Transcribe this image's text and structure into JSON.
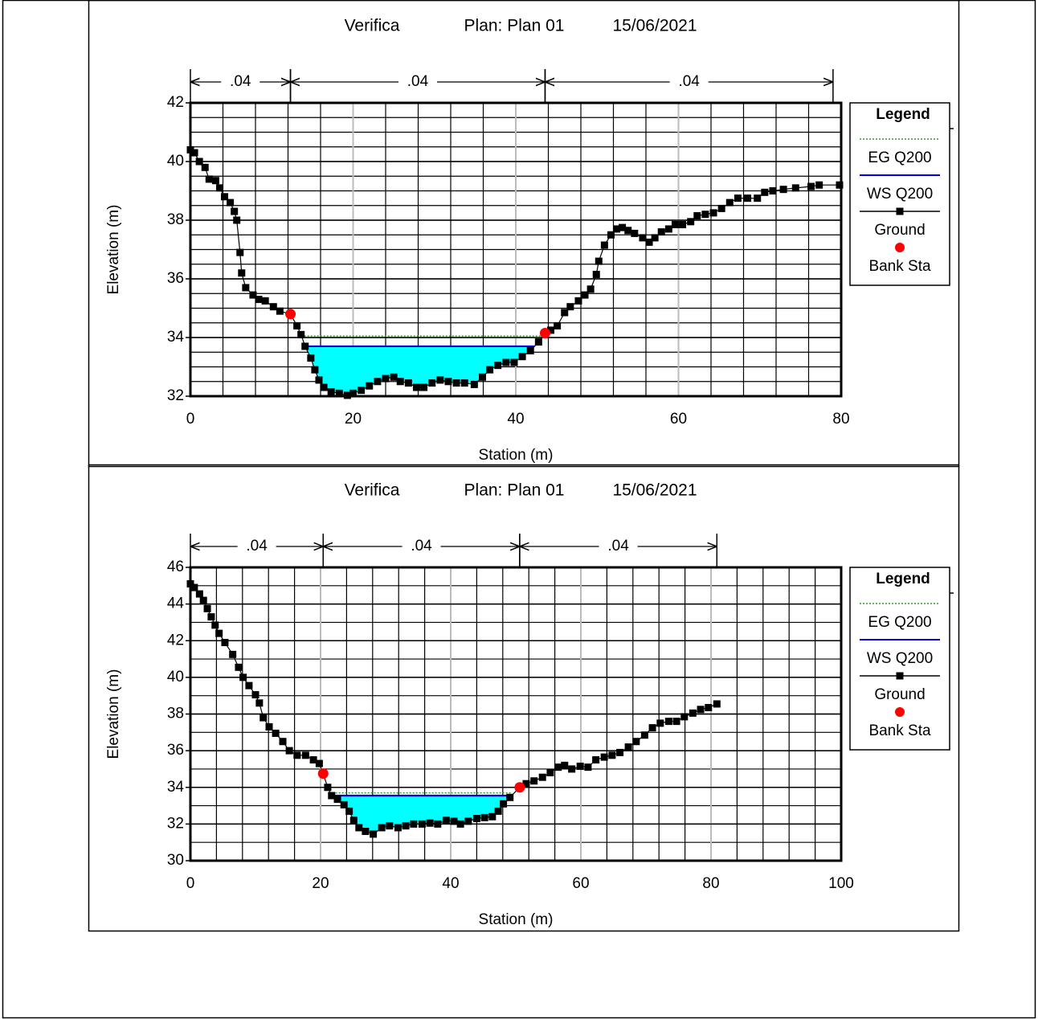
{
  "chart_data": [
    {
      "type": "line",
      "title": "Verifica",
      "plan": "Plan: Plan 01",
      "date": "15/06/2021",
      "x_label": "Station (m)",
      "y_label": "Elevation (m)",
      "legend_title": "Legend",
      "xlim": [
        0,
        80
      ],
      "ylim": [
        32,
        42
      ],
      "xticks": [
        0,
        20,
        40,
        60,
        80
      ],
      "yticks": [
        32,
        34,
        36,
        38,
        40,
        42
      ],
      "grid": true,
      "minor_grid": {
        "x": 4,
        "y": 0.5
      },
      "legend": "right",
      "fill_color": "#00ffff",
      "manning_n": [
        {
          "from": 0,
          "to": 12.3,
          "n": {
            "value": 0.04,
            "label": ".04"
          }
        },
        {
          "from": 12.3,
          "to": 43.6,
          "n": {
            "value": 0.04,
            "label": ".04"
          }
        },
        {
          "from": 43.6,
          "to": 79,
          "n": {
            "value": 0.04,
            "label": ".04"
          }
        }
      ],
      "series": [
        {
          "name": "EG Q200",
          "color": "#2e9e2e",
          "style": "dotted",
          "x": [
            13.6,
            43.2
          ],
          "values": [
            34.05,
            34.05
          ]
        },
        {
          "name": "WS Q200",
          "color": "#0000dd",
          "style": "solid",
          "x": [
            14.1,
            42.3
          ],
          "values": [
            33.7,
            33.7
          ]
        },
        {
          "name": "Ground",
          "color": "#000000",
          "marker": "square",
          "x": [
            0,
            0.5,
            1.1,
            1.8,
            2.3,
            3.1,
            3.6,
            4.2,
            4.9,
            5.4,
            5.7,
            6.1,
            6.3,
            6.8,
            7.7,
            8.4,
            9.2,
            10.2,
            11.0,
            12.3,
            13.1,
            13.6,
            14.1,
            14.8,
            15.3,
            15.8,
            16.4,
            17.3,
            18.3,
            19.3,
            20.0,
            21.0,
            22.0,
            23.0,
            24.0,
            25.0,
            25.8,
            26.8,
            27.8,
            28.7,
            29.7,
            30.7,
            31.7,
            32.7,
            33.7,
            34.9,
            35.9,
            36.8,
            37.8,
            38.8,
            39.8,
            40.8,
            41.8,
            42.8,
            43.6,
            44.3,
            45.1,
            46.0,
            46.7,
            47.7,
            48.5,
            49.2,
            49.9,
            50.2,
            50.9,
            51.7,
            52.4,
            53.1,
            53.8,
            54.6,
            55.6,
            56.4,
            57.1,
            57.9,
            58.8,
            59.6,
            60.5,
            61.5,
            62.3,
            63.3,
            64.3,
            65.3,
            66.3,
            67.3,
            68.5,
            69.7,
            70.6,
            71.6,
            72.9,
            74.4,
            76.3,
            77.3,
            79.8
          ],
          "values": [
            40.4,
            40.3,
            40.0,
            39.8,
            39.4,
            39.35,
            39.1,
            38.8,
            38.6,
            38.3,
            38.0,
            36.9,
            36.2,
            35.7,
            35.45,
            35.3,
            35.25,
            35.05,
            34.9,
            34.8,
            34.4,
            34.1,
            33.7,
            33.3,
            32.9,
            32.55,
            32.3,
            32.15,
            32.1,
            32.03,
            32.1,
            32.2,
            32.35,
            32.5,
            32.6,
            32.65,
            32.5,
            32.45,
            32.3,
            32.3,
            32.45,
            32.55,
            32.5,
            32.45,
            32.45,
            32.4,
            32.65,
            32.9,
            33.05,
            33.15,
            33.15,
            33.35,
            33.55,
            33.85,
            34.15,
            34.25,
            34.4,
            34.85,
            35.05,
            35.25,
            35.45,
            35.65,
            36.15,
            36.6,
            37.15,
            37.5,
            37.7,
            37.75,
            37.65,
            37.55,
            37.4,
            37.25,
            37.4,
            37.6,
            37.7,
            37.85,
            37.85,
            37.95,
            38.15,
            38.2,
            38.25,
            38.4,
            38.6,
            38.75,
            38.75,
            38.75,
            38.95,
            39.0,
            39.05,
            39.1,
            39.15,
            39.2,
            39.2
          ]
        },
        {
          "name": "Bank Sta",
          "color": "#ff0000",
          "marker": "circle",
          "x": [
            12.3,
            43.6
          ],
          "values": [
            34.8,
            34.15
          ]
        }
      ]
    },
    {
      "type": "line",
      "title": "Verifica",
      "plan": "Plan: Plan 01",
      "date": "15/06/2021",
      "x_label": "Station (m)",
      "y_label": "Elevation (m)",
      "legend_title": "Legend",
      "xlim": [
        0,
        100
      ],
      "ylim": [
        30,
        46
      ],
      "xticks": [
        0,
        20,
        40,
        60,
        80,
        100
      ],
      "yticks": [
        30,
        32,
        34,
        36,
        38,
        40,
        42,
        44,
        46
      ],
      "grid": true,
      "minor_grid": {
        "x": 4,
        "y": 1
      },
      "legend": "right",
      "fill_color": "#00ffff",
      "manning_n": [
        {
          "from": 0,
          "to": 20.4,
          "n": {
            "value": 0.04,
            "label": ".04"
          }
        },
        {
          "from": 20.4,
          "to": 50.6,
          "n": {
            "value": 0.04,
            "label": ".04"
          }
        },
        {
          "from": 50.6,
          "to": 80.9,
          "n": {
            "value": 0.04,
            "label": ".04"
          }
        }
      ],
      "series": [
        {
          "name": "EG Q200",
          "color": "#2e9e2e",
          "style": "dotted",
          "x": [
            22.3,
            49.3
          ],
          "values": [
            33.7,
            33.7
          ]
        },
        {
          "name": "WS Q200",
          "color": "#0000dd",
          "style": "solid",
          "x": [
            21.7,
            48.9
          ],
          "values": [
            33.55,
            33.55
          ]
        },
        {
          "name": "Ground",
          "color": "#000000",
          "marker": "square",
          "x": [
            0,
            0.6,
            1.4,
            2.0,
            2.6,
            3.2,
            3.8,
            4.4,
            5.3,
            6.5,
            7.4,
            8.1,
            9.0,
            10.0,
            10.6,
            11.2,
            12.1,
            13.1,
            14.2,
            15.2,
            16.4,
            17.7,
            18.9,
            19.8,
            20.4,
            21.1,
            21.7,
            22.6,
            23.6,
            24.4,
            25.1,
            25.9,
            26.9,
            28.1,
            29.4,
            30.6,
            31.9,
            33.1,
            34.3,
            35.6,
            36.8,
            38.0,
            39.3,
            40.5,
            41.5,
            42.7,
            44.0,
            45.2,
            46.4,
            47.3,
            48.1,
            49.1,
            50.6,
            51.6,
            52.8,
            54.1,
            55.3,
            56.5,
            57.5,
            58.6,
            59.9,
            61.1,
            62.3,
            63.6,
            64.8,
            66.0,
            67.3,
            68.5,
            69.8,
            71.0,
            72.2,
            73.5,
            74.7,
            75.9,
            77.2,
            78.4,
            79.6,
            80.9
          ],
          "values": [
            45.1,
            44.9,
            44.55,
            44.2,
            43.75,
            43.3,
            42.85,
            42.4,
            41.9,
            41.25,
            40.55,
            40.0,
            39.55,
            39.05,
            38.6,
            37.8,
            37.3,
            36.95,
            36.5,
            36.0,
            35.75,
            35.75,
            35.5,
            35.3,
            34.75,
            34.0,
            33.55,
            33.35,
            33.05,
            32.7,
            32.2,
            31.8,
            31.6,
            31.45,
            31.8,
            31.9,
            31.8,
            31.9,
            32.0,
            32.0,
            32.05,
            32.0,
            32.2,
            32.15,
            32.0,
            32.15,
            32.3,
            32.35,
            32.4,
            32.7,
            33.1,
            33.45,
            34.0,
            34.2,
            34.35,
            34.55,
            34.8,
            35.1,
            35.2,
            35.0,
            35.15,
            35.1,
            35.5,
            35.65,
            35.75,
            35.9,
            36.2,
            36.5,
            36.85,
            37.25,
            37.5,
            37.6,
            37.6,
            37.85,
            38.05,
            38.25,
            38.35,
            38.55
          ]
        },
        {
          "name": "Bank Sta",
          "color": "#ff0000",
          "marker": "circle",
          "x": [
            20.4,
            50.6
          ],
          "values": [
            34.75,
            34.0
          ]
        }
      ]
    }
  ]
}
